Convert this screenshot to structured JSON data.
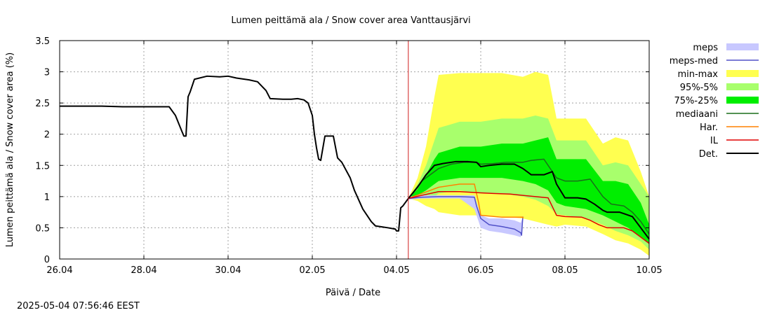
{
  "chart_data": {
    "type": "line",
    "title": "Lumen peittämä ala / Snow cover area Vanttausjärvi",
    "xlabel": "Päivä / Date",
    "ylabel": "Lumen peittämä ala / Snow cover area (%)",
    "x_domain": [
      0,
      14
    ],
    "ylim": [
      0,
      3.5
    ],
    "x_ticks": [
      {
        "x": 0,
        "label": "26.04"
      },
      {
        "x": 2,
        "label": "28.04"
      },
      {
        "x": 4,
        "label": "30.04"
      },
      {
        "x": 6,
        "label": "02.05"
      },
      {
        "x": 8,
        "label": "04.05"
      },
      {
        "x": 10,
        "label": "06.05"
      },
      {
        "x": 12,
        "label": "08.05"
      },
      {
        "x": 14,
        "label": "10.05"
      }
    ],
    "y_ticks": [
      {
        "y": 0,
        "label": "0"
      },
      {
        "y": 0.5,
        "label": "0.5"
      },
      {
        "y": 1,
        "label": "1"
      },
      {
        "y": 1.5,
        "label": "1.5"
      },
      {
        "y": 2,
        "label": "2"
      },
      {
        "y": 2.5,
        "label": "2.5"
      },
      {
        "y": 3,
        "label": "3"
      },
      {
        "y": 3.5,
        "label": "3.5"
      }
    ],
    "grid": true,
    "forecast_start_x": 8.28,
    "legend": [
      {
        "key": "meps",
        "label": "meps",
        "color": "#c8c8ff",
        "kind": "band"
      },
      {
        "key": "meps_med",
        "label": "meps-med",
        "color": "#5050c8",
        "kind": "line"
      },
      {
        "key": "minmax",
        "label": "min-max",
        "color": "#ffff50",
        "kind": "band"
      },
      {
        "key": "p95_5",
        "label": "95%-5%",
        "color": "#a8ff6c",
        "kind": "band"
      },
      {
        "key": "p75_25",
        "label": "75%-25%",
        "color": "#00ee00",
        "kind": "band"
      },
      {
        "key": "mediaani",
        "label": "mediaani",
        "color": "#1a6e1a",
        "kind": "line"
      },
      {
        "key": "har",
        "label": "Har.",
        "color": "#ff8000",
        "kind": "line"
      },
      {
        "key": "il",
        "label": "IL",
        "color": "#e00000",
        "kind": "line"
      },
      {
        "key": "det",
        "label": "Det.",
        "color": "#000000",
        "kind": "line"
      }
    ],
    "series": {
      "minmax": {
        "x": [
          8.28,
          8.5,
          8.7,
          8.9,
          9.0,
          9.5,
          10.0,
          10.5,
          11.0,
          11.3,
          11.6,
          11.8,
          12.0,
          12.5,
          12.9,
          13.2,
          13.5,
          13.8,
          14.0
        ],
        "upper": [
          0.97,
          1.3,
          1.8,
          2.6,
          2.95,
          2.98,
          2.98,
          2.98,
          2.92,
          3.0,
          2.95,
          2.25,
          2.25,
          2.25,
          1.85,
          1.95,
          1.9,
          1.4,
          1.0
        ],
        "lower": [
          0.97,
          0.93,
          0.85,
          0.8,
          0.75,
          0.7,
          0.7,
          0.68,
          0.65,
          0.6,
          0.55,
          0.52,
          0.55,
          0.52,
          0.4,
          0.3,
          0.25,
          0.15,
          0.05
        ]
      },
      "p95_5": {
        "x": [
          8.28,
          8.5,
          8.7,
          8.9,
          9.0,
          9.5,
          10.0,
          10.5,
          11.0,
          11.3,
          11.6,
          11.8,
          12.0,
          12.5,
          12.9,
          13.2,
          13.5,
          13.8,
          14.0
        ],
        "upper": [
          0.97,
          1.2,
          1.5,
          1.9,
          2.1,
          2.2,
          2.2,
          2.25,
          2.25,
          2.3,
          2.25,
          1.9,
          1.9,
          1.9,
          1.5,
          1.55,
          1.5,
          1.2,
          1.0
        ],
        "lower": [
          0.97,
          0.98,
          1.0,
          1.0,
          1.05,
          1.1,
          1.05,
          1.05,
          1.0,
          0.95,
          0.85,
          0.72,
          0.7,
          0.65,
          0.55,
          0.45,
          0.38,
          0.28,
          0.15
        ]
      },
      "p75_25": {
        "x": [
          8.28,
          8.5,
          8.7,
          8.9,
          9.0,
          9.5,
          10.0,
          10.5,
          11.0,
          11.3,
          11.6,
          11.8,
          12.0,
          12.5,
          12.9,
          13.2,
          13.5,
          13.8,
          14.0
        ],
        "upper": [
          0.97,
          1.12,
          1.35,
          1.6,
          1.7,
          1.8,
          1.8,
          1.85,
          1.85,
          1.9,
          1.95,
          1.6,
          1.6,
          1.6,
          1.25,
          1.25,
          1.2,
          0.9,
          0.55
        ],
        "lower": [
          0.97,
          1.02,
          1.1,
          1.2,
          1.25,
          1.3,
          1.3,
          1.3,
          1.25,
          1.2,
          1.1,
          0.9,
          0.85,
          0.8,
          0.7,
          0.6,
          0.5,
          0.35,
          0.25
        ]
      },
      "meps": {
        "x": [
          8.28,
          8.6,
          9.0,
          9.5,
          9.85,
          10.0,
          10.2,
          10.5,
          10.8,
          10.95,
          11.0
        ],
        "upper": [
          1.0,
          1.02,
          1.02,
          1.02,
          1.02,
          0.7,
          0.65,
          0.65,
          0.62,
          0.58,
          0.68
        ],
        "lower": [
          0.95,
          0.97,
          0.97,
          0.97,
          0.8,
          0.5,
          0.45,
          0.42,
          0.38,
          0.35,
          0.6
        ]
      },
      "meps_med": {
        "x": [
          8.28,
          8.6,
          9.0,
          9.5,
          9.85,
          9.9,
          10.0,
          10.2,
          10.5,
          10.8,
          10.95,
          10.97,
          11.0
        ],
        "y": [
          0.97,
          0.99,
          1.0,
          1.0,
          0.99,
          0.85,
          0.65,
          0.55,
          0.52,
          0.48,
          0.42,
          0.38,
          0.68
        ]
      },
      "har": {
        "x": [
          8.28,
          8.6,
          9.0,
          9.5,
          9.85,
          9.95,
          10.0,
          10.5,
          11.0,
          11.0
        ],
        "y": [
          0.97,
          1.05,
          1.15,
          1.2,
          1.2,
          0.9,
          0.7,
          0.67,
          0.67,
          0.65
        ]
      },
      "il": {
        "x": [
          8.28,
          8.6,
          9.0,
          9.5,
          10.0,
          10.3,
          10.7,
          11.0,
          11.3,
          11.6,
          11.8,
          12.0,
          12.4,
          12.6,
          12.8,
          13.0,
          13.4,
          13.6,
          13.8,
          14.0
        ],
        "y": [
          0.97,
          1.02,
          1.08,
          1.08,
          1.06,
          1.05,
          1.04,
          1.02,
          1.0,
          0.98,
          0.7,
          0.68,
          0.67,
          0.62,
          0.55,
          0.5,
          0.5,
          0.45,
          0.35,
          0.25
        ]
      },
      "mediaani": {
        "x": [
          8.28,
          8.6,
          9.0,
          9.3,
          9.6,
          9.9,
          10.0,
          10.3,
          10.6,
          11.0,
          11.2,
          11.5,
          11.8,
          12.0,
          12.3,
          12.6,
          12.9,
          13.1,
          13.4,
          13.6,
          13.8,
          14.0
        ],
        "y": [
          0.97,
          1.25,
          1.45,
          1.52,
          1.55,
          1.55,
          1.52,
          1.53,
          1.55,
          1.55,
          1.58,
          1.6,
          1.3,
          1.25,
          1.25,
          1.28,
          1.0,
          0.88,
          0.85,
          0.75,
          0.6,
          0.4
        ]
      },
      "det": {
        "x": [
          0,
          1.0,
          1.5,
          2.5,
          2.6,
          2.75,
          2.9,
          2.95,
          3.0,
          3.05,
          3.1,
          3.2,
          3.5,
          3.8,
          4.0,
          4.2,
          4.5,
          4.7,
          4.9,
          5.0,
          5.3,
          5.5,
          5.65,
          5.8,
          5.9,
          6.0,
          6.05,
          6.1,
          6.15,
          6.2,
          6.3,
          6.5,
          6.6,
          6.7,
          6.9,
          7.0,
          7.2,
          7.4,
          7.5,
          7.6,
          7.8,
          7.97,
          8.0,
          8.05,
          8.1,
          8.15,
          8.28,
          8.5,
          8.7,
          8.9,
          9.1,
          9.4,
          9.7,
          9.9,
          10.0,
          10.2,
          10.5,
          10.8,
          11.0,
          11.2,
          11.5,
          11.7,
          11.8,
          12.0,
          12.3,
          12.5,
          12.7,
          12.9,
          13.0,
          13.3,
          13.6,
          13.8,
          14.0
        ],
        "y": [
          2.45,
          2.45,
          2.44,
          2.44,
          2.44,
          2.3,
          2.05,
          1.97,
          1.97,
          2.6,
          2.68,
          2.88,
          2.93,
          2.92,
          2.93,
          2.9,
          2.87,
          2.84,
          2.7,
          2.57,
          2.56,
          2.56,
          2.57,
          2.55,
          2.5,
          2.3,
          2.0,
          1.78,
          1.6,
          1.58,
          1.97,
          1.97,
          1.62,
          1.55,
          1.3,
          1.1,
          0.8,
          0.6,
          0.53,
          0.52,
          0.5,
          0.48,
          0.45,
          0.45,
          0.82,
          0.85,
          0.97,
          1.15,
          1.35,
          1.5,
          1.53,
          1.56,
          1.56,
          1.55,
          1.48,
          1.5,
          1.52,
          1.52,
          1.45,
          1.35,
          1.35,
          1.4,
          1.2,
          0.98,
          0.98,
          0.96,
          0.88,
          0.78,
          0.75,
          0.75,
          0.68,
          0.5,
          0.32
        ]
      }
    },
    "timestamp": "2025-05-04 07:56:46 EEST"
  }
}
